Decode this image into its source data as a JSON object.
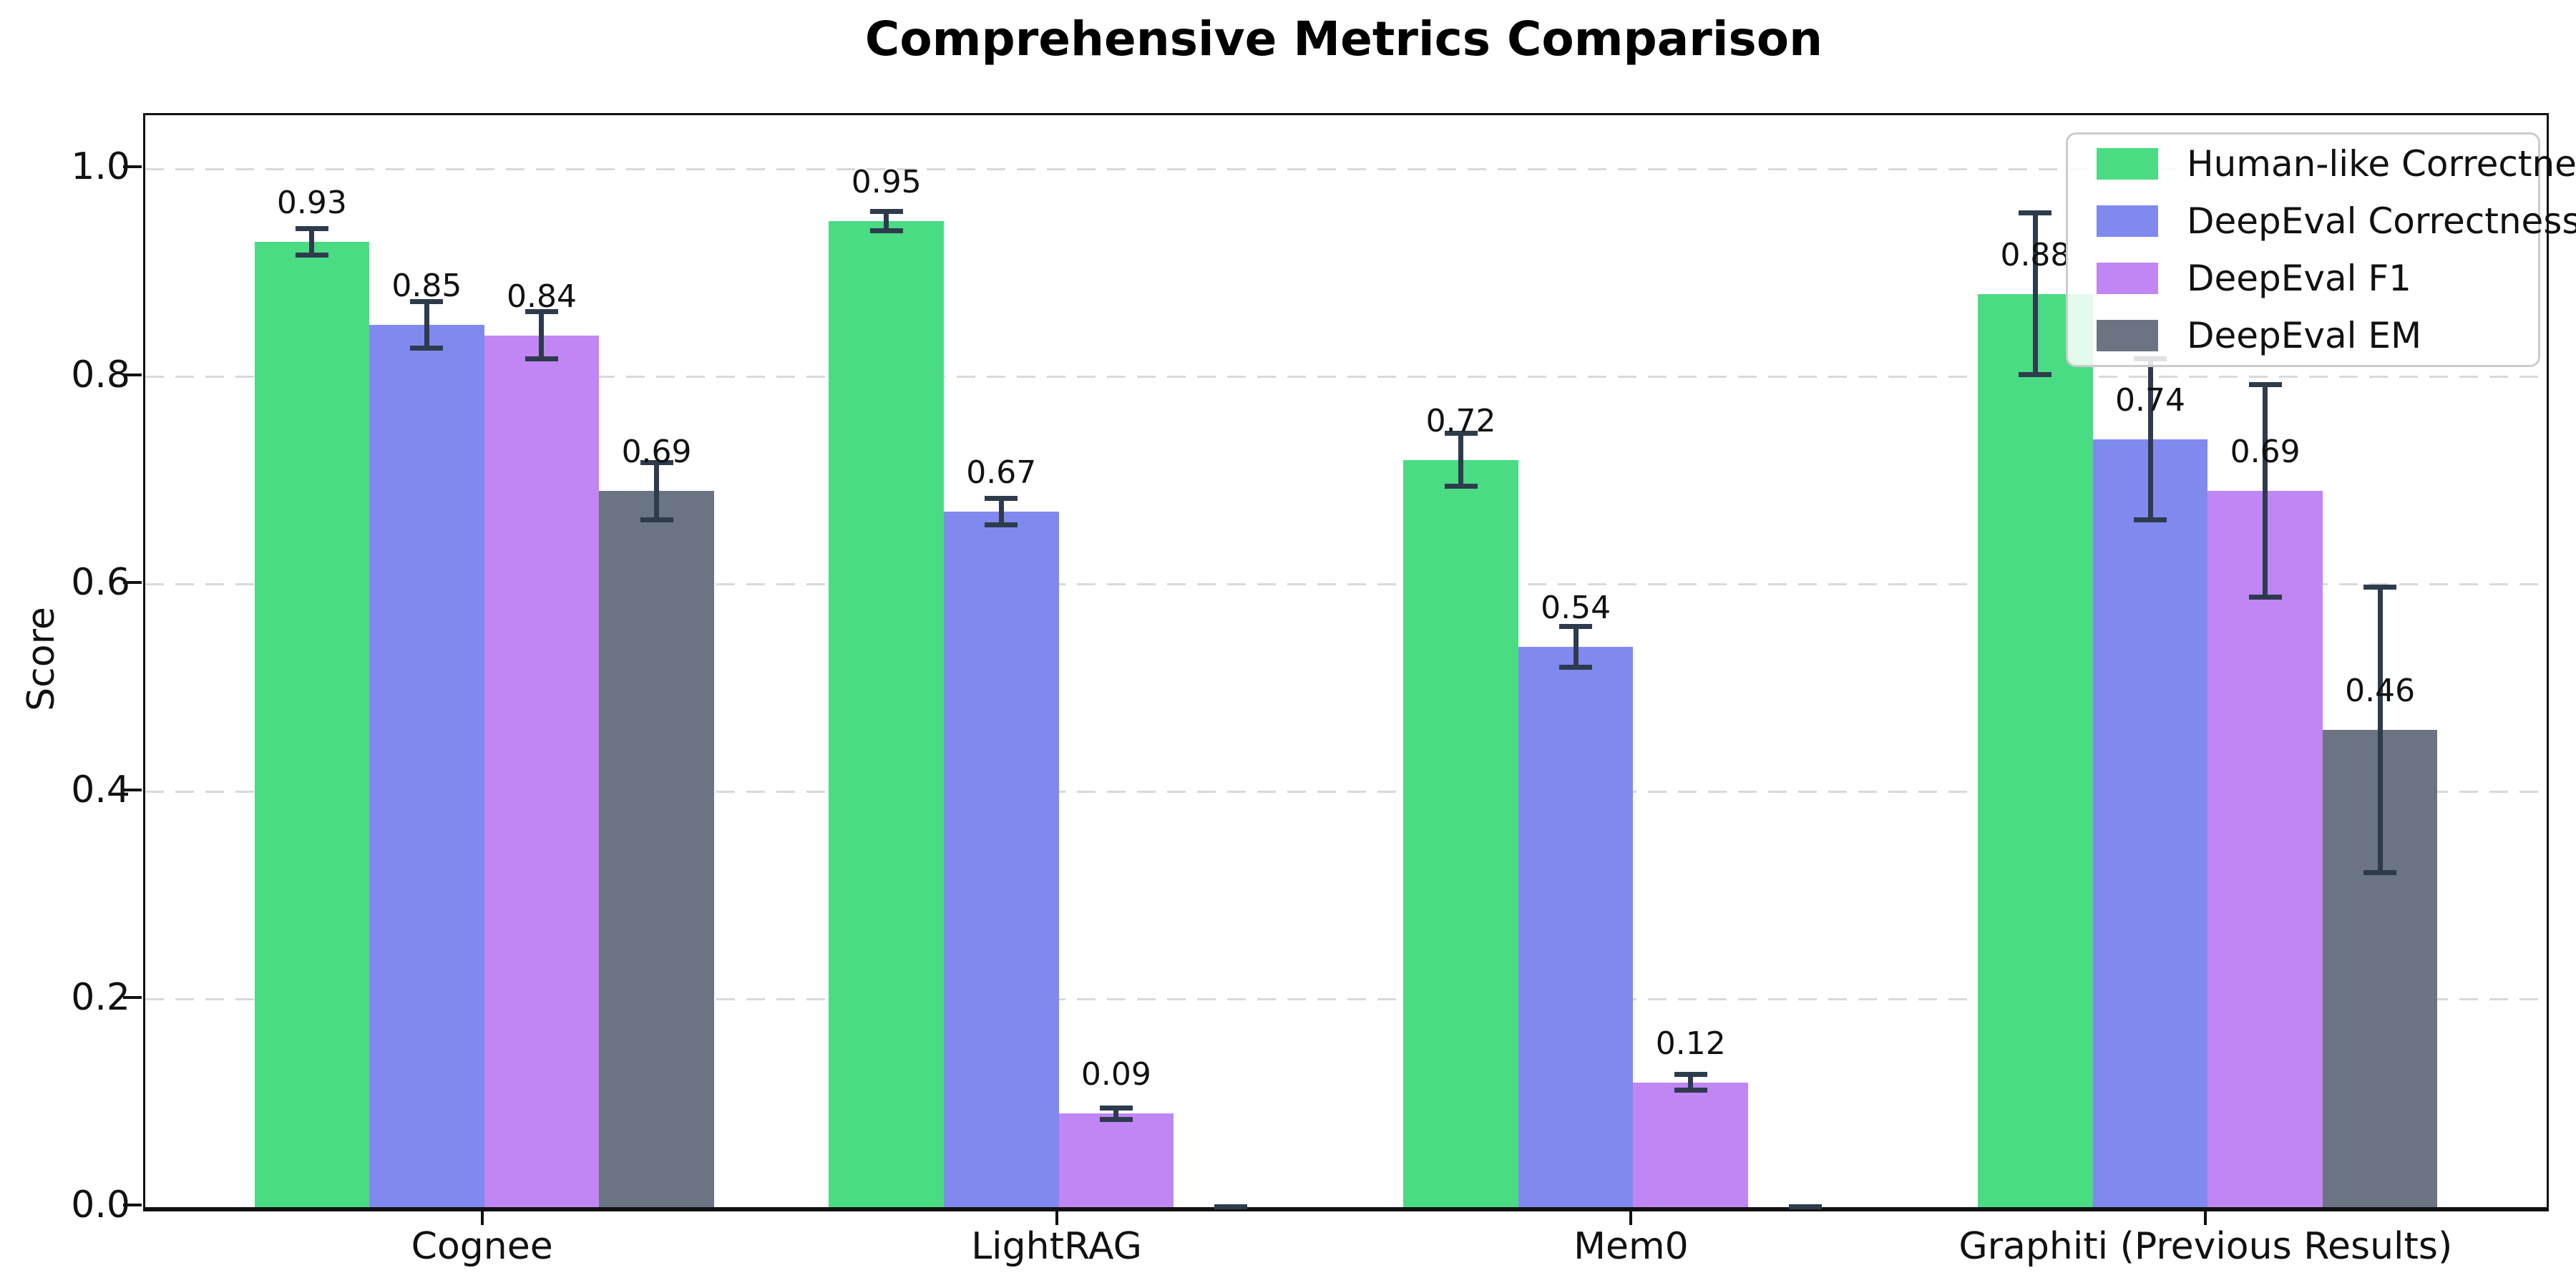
{
  "title": "Comprehensive Metrics Comparison",
  "chart_data": {
    "type": "bar",
    "title": "Comprehensive Metrics Comparison",
    "xlabel": "",
    "ylabel": "Score",
    "categories": [
      "Cognee",
      "LightRAG",
      "Mem0",
      "Graphiti (Previous Results)"
    ],
    "series": [
      {
        "name": "Human-like Correctness",
        "color": "#4adc83",
        "values": [
          0.93,
          0.95,
          0.72,
          0.88
        ],
        "errors": [
          0.015,
          0.012,
          0.028,
          0.08
        ]
      },
      {
        "name": "DeepEval Correctness",
        "color": "#8089ee",
        "values": [
          0.85,
          0.67,
          0.54,
          0.74
        ],
        "errors": [
          0.025,
          0.015,
          0.022,
          0.08
        ]
      },
      {
        "name": "DeepEval F1",
        "color": "#bf86f4",
        "values": [
          0.84,
          0.09,
          0.12,
          0.69
        ],
        "errors": [
          0.025,
          0.008,
          0.01,
          0.105
        ]
      },
      {
        "name": "DeepEval EM",
        "color": "#6a7483",
        "values": [
          0.69,
          0.0,
          0.0,
          0.46
        ],
        "errors": [
          0.03,
          0.003,
          0.003,
          0.14
        ]
      }
    ],
    "yticks": [
      0.0,
      0.2,
      0.4,
      0.6,
      0.8,
      1.0
    ],
    "ytick_labels": [
      "0.0",
      "0.2",
      "0.4",
      "0.6",
      "0.8",
      "1.0"
    ],
    "ylim": [
      0,
      1.05
    ],
    "grid": {
      "axis": "y",
      "style": "dashed",
      "color": "#d9d9d9"
    },
    "legend": {
      "position": "upper right",
      "entries": [
        "Human-like Correctness",
        "DeepEval Correctness",
        "DeepEval F1",
        "DeepEval EM"
      ]
    },
    "value_label_format": ".2f",
    "hide_zero_value_labels": true,
    "error_bar_color": "#2e3b4d"
  },
  "colors": {
    "background": "#ffffff",
    "spine": "#111111",
    "text": "#111111"
  }
}
